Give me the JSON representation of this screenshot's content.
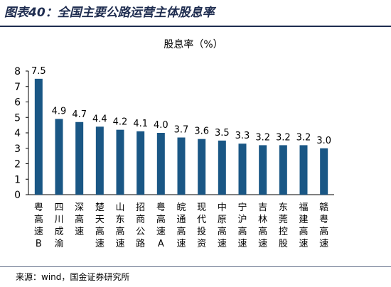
{
  "figure_title": "图表40：全国主要公路运营主体股息率",
  "source": "来源：wind，国金证券研究所",
  "colors": {
    "bar": "#1a5785",
    "title": "#1f2d50"
  },
  "chart_data": {
    "type": "bar",
    "title": "股息率（%）",
    "xlabel": "",
    "ylabel": "",
    "ylim": [
      0,
      8
    ],
    "yticks": [
      0,
      1,
      2,
      3,
      4,
      5,
      6,
      7,
      8
    ],
    "grid": false,
    "categories": [
      "粤高速B",
      "四川成渝",
      "深高速",
      "楚天高速",
      "山东高速",
      "招商公路",
      "粤高速A",
      "皖通高速",
      "现代投资",
      "中原高速",
      "宁沪高速",
      "吉林高速",
      "东莞控股",
      "福建高速",
      "赣粤高速"
    ],
    "values": [
      7.5,
      4.9,
      4.7,
      4.4,
      4.2,
      4.1,
      4.0,
      3.7,
      3.6,
      3.5,
      3.3,
      3.2,
      3.2,
      3.2,
      3.0
    ],
    "value_labels": [
      "7.5",
      "4.9",
      "4.7",
      "4.4",
      "4.2",
      "4.1",
      "4.0",
      "3.7",
      "3.6",
      "3.5",
      "3.3",
      "3.2",
      "3.2",
      "3.2",
      "3.0"
    ]
  }
}
